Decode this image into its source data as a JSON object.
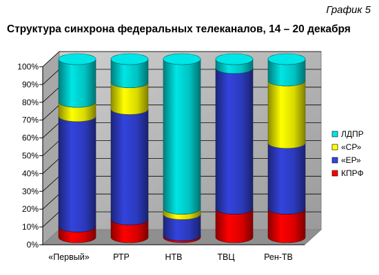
{
  "figure_number": "График 5",
  "chart_data": {
    "type": "bar",
    "stacked": true,
    "percent_stacked": true,
    "three_d": true,
    "title": "Структура синхрона федеральных телеканалов, 14 – 20 декабря",
    "xlabel": "",
    "ylabel": "",
    "ylim": [
      0,
      100
    ],
    "yticks": [
      "0%",
      "10%",
      "20%",
      "30%",
      "40%",
      "50%",
      "60%",
      "70%",
      "80%",
      "90%",
      "100%"
    ],
    "categories": [
      "«Первый»",
      "РТР",
      "НТВ",
      "ТВЦ",
      "Рен-ТВ"
    ],
    "series": [
      {
        "name": "КПРФ",
        "color": "#ff0000",
        "values": [
          6,
          10,
          1,
          16,
          16
        ]
      },
      {
        "name": "«ЕР»",
        "color": "#3344dd",
        "values": [
          62,
          62,
          12,
          79,
          37
        ]
      },
      {
        "name": "«СР»",
        "color": "#ffff00",
        "values": [
          8,
          15,
          3,
          0,
          35
        ]
      },
      {
        "name": "ЛДПР",
        "color": "#00e5e5",
        "values": [
          24,
          13,
          84,
          5,
          12
        ]
      }
    ],
    "legend_position": "right",
    "grid": true,
    "wall_color": "#c0c0c0"
  }
}
